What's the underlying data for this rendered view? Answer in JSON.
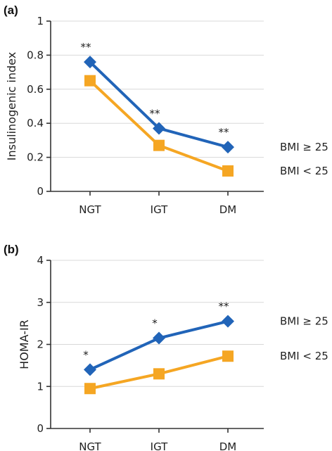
{
  "chart_data": [
    {
      "panel": "(a)",
      "type": "line",
      "ylabel": "Insulinogenic index",
      "categories": [
        "NGT",
        "IGT",
        "DM"
      ],
      "ylim": [
        0,
        1
      ],
      "yticks": [
        "0",
        "0.2",
        "0.4",
        "0.6",
        "0.8",
        "1"
      ],
      "grid": true,
      "series": [
        {
          "name": "BMI ≥ 25",
          "values": [
            0.76,
            0.37,
            0.26
          ],
          "color": "#2164b8",
          "marker": "diamond"
        },
        {
          "name": "BMI < 25",
          "values": [
            0.65,
            0.27,
            0.12
          ],
          "color": "#f5a623",
          "marker": "square"
        }
      ],
      "annotations": [
        "**",
        "**",
        "**"
      ]
    },
    {
      "panel": "(b)",
      "type": "line",
      "ylabel": "HOMA-IR",
      "categories": [
        "NGT",
        "IGT",
        "DM"
      ],
      "ylim": [
        0,
        4
      ],
      "yticks": [
        "0",
        "1",
        "2",
        "3",
        "4"
      ],
      "grid": true,
      "series": [
        {
          "name": "BMI ≥ 25",
          "values": [
            1.4,
            2.15,
            2.55
          ],
          "color": "#2164b8",
          "marker": "diamond"
        },
        {
          "name": "BMI < 25",
          "values": [
            0.95,
            1.3,
            1.72
          ],
          "color": "#f5a623",
          "marker": "square"
        }
      ],
      "annotations": [
        "*",
        "*",
        "**"
      ]
    }
  ]
}
